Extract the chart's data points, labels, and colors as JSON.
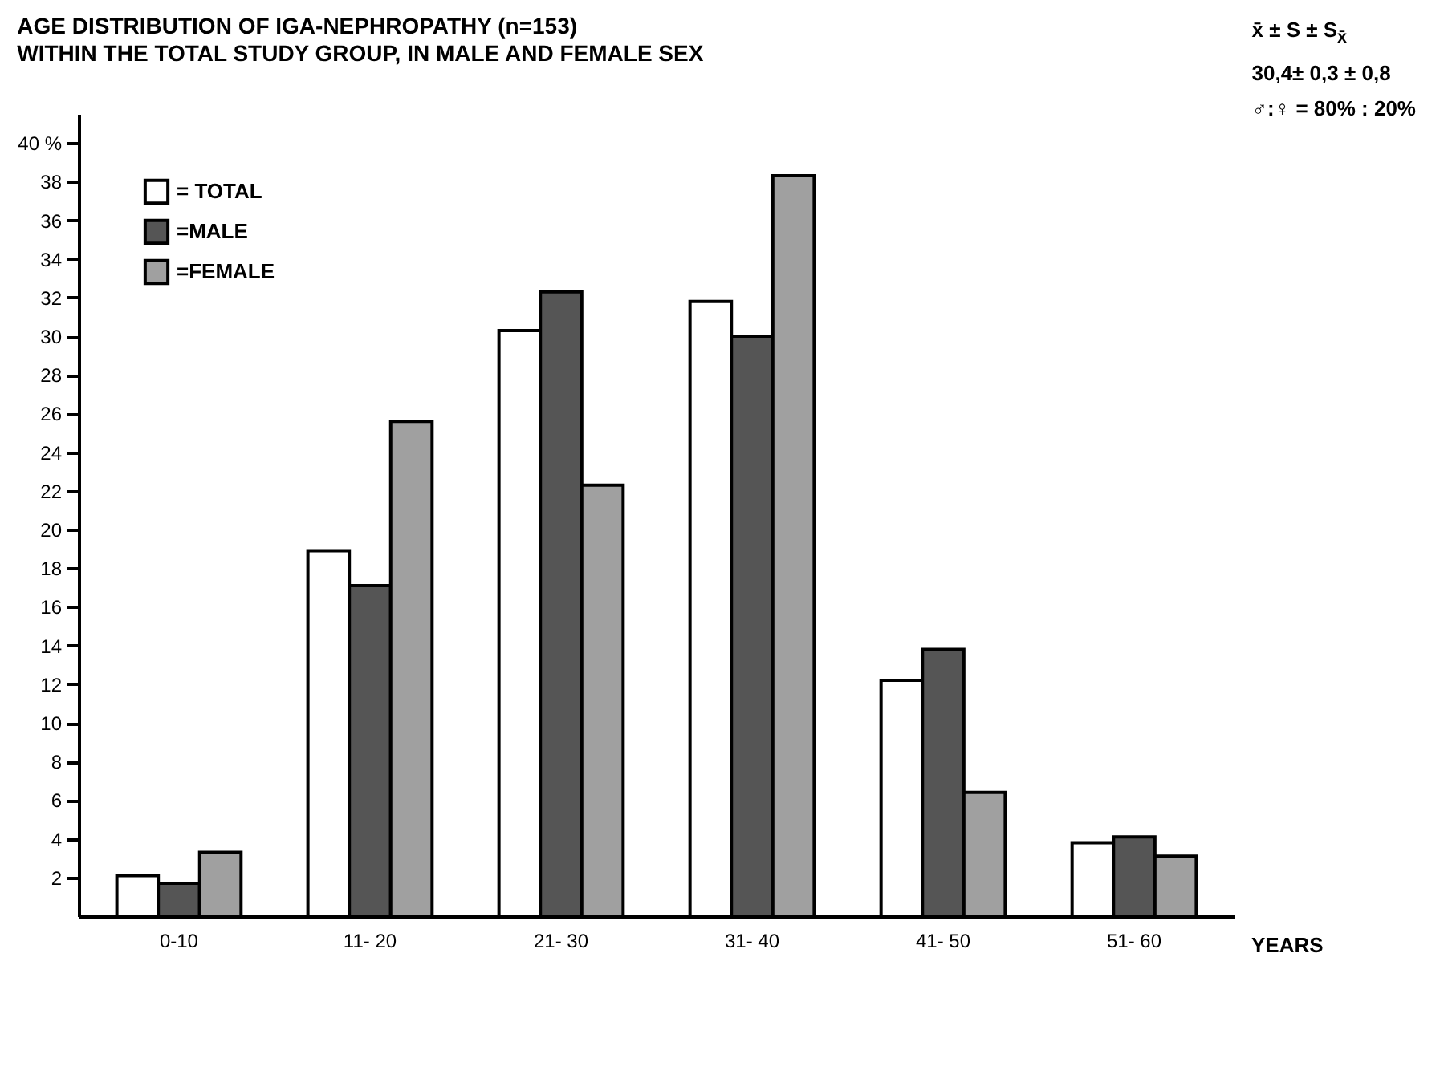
{
  "chart_data": {
    "type": "bar",
    "title": "AGE DISTRIBUTION OF IGA-NEPHROPATHY (n=153)",
    "subtitle": "WITHIN THE TOTAL STUDY GROUP, IN MALE AND FEMALE SEX",
    "xlabel": "YEARS",
    "annotations": [
      "x̄ ± S ± S$_{x̄}$",
      "30,4± 0,3 ± 0,8",
      "♂:♀ = 80% : 20%"
    ],
    "categories": [
      "0-10",
      "11- 20",
      "21- 30",
      "31- 40",
      "41- 50",
      "51- 60"
    ],
    "series": [
      {
        "name": "= TOTAL",
        "color": "#ffffff",
        "values": [
          2.1,
          18.9,
          30.3,
          31.8,
          12.2,
          3.8
        ]
      },
      {
        "name": "=MALE",
        "color": "#555555",
        "values": [
          1.7,
          17.1,
          32.3,
          30.0,
          13.8,
          4.1
        ]
      },
      {
        "name": "=FEMALE",
        "color": "#a0a0a0",
        "values": [
          3.3,
          25.6,
          22.3,
          38.3,
          6.4,
          3.1
        ]
      }
    ],
    "ylim": [
      0,
      41.5
    ],
    "yticks": [
      2,
      4,
      6,
      8,
      10,
      12,
      14,
      16,
      18,
      20,
      22,
      24,
      26,
      28,
      30,
      32,
      34,
      36,
      38,
      {
        "value": 40,
        "label": "40 %"
      }
    ],
    "grid": false,
    "legend": "top left"
  }
}
